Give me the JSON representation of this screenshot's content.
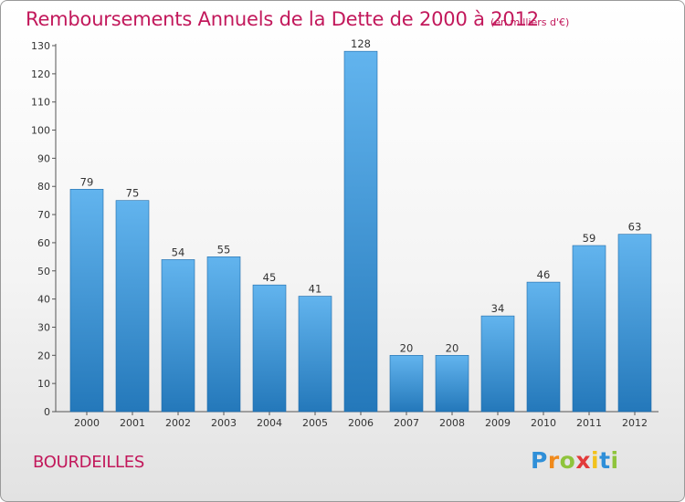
{
  "header": {
    "title": "Remboursements Annuels de la Dette de 2000 à 2012",
    "unit": "(en milliers d'€)"
  },
  "footer": {
    "place": "BOURDEILLES",
    "logo_letters": [
      "P",
      "r",
      "o",
      "x",
      "i",
      "t",
      "i"
    ],
    "logo_colors": [
      "#2f8fd8",
      "#f08a1c",
      "#8fc43c",
      "#e23a3a",
      "#f2c21b",
      "#2f8fd8",
      "#8fc43c"
    ]
  },
  "colors": {
    "bar_top": "#62b4ee",
    "bar_bottom": "#2478ba",
    "title": "#c2185b"
  },
  "chart_data": {
    "type": "bar",
    "title": "Remboursements Annuels de la Dette de 2000 à 2012",
    "subtitle": "(en milliers d'€)",
    "xlabel": "",
    "ylabel": "",
    "categories": [
      "2000",
      "2001",
      "2002",
      "2003",
      "2004",
      "2005",
      "2006",
      "2007",
      "2008",
      "2009",
      "2010",
      "2011",
      "2012"
    ],
    "values": [
      79,
      75,
      54,
      55,
      45,
      41,
      128,
      20,
      20,
      34,
      46,
      59,
      63
    ],
    "ylim": [
      0,
      130
    ],
    "yticks": [
      0,
      10,
      20,
      30,
      40,
      50,
      60,
      70,
      80,
      90,
      100,
      110,
      120,
      130
    ],
    "grid": false,
    "data_labels": true
  }
}
